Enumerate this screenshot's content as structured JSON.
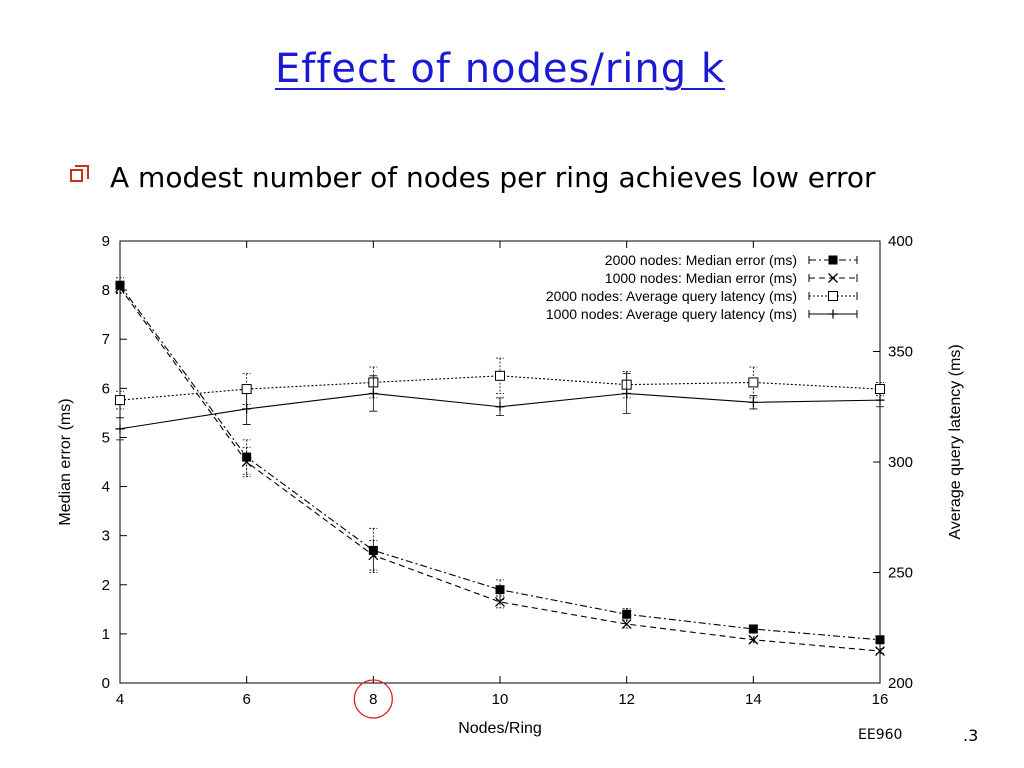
{
  "slide": {
    "title": "Effect of nodes/ring k",
    "bullet": "A modest number of nodes per ring achieves low error",
    "footer": "EE960",
    "page_number": ".3"
  },
  "chart_data": {
    "type": "line",
    "x": [
      4,
      6,
      8,
      10,
      12,
      14,
      16
    ],
    "xlabel": "Nodes/Ring",
    "ylabel": "Median error (ms)",
    "y2label": "Average query latency (ms)",
    "xlim": [
      4,
      16
    ],
    "ylim": [
      0,
      9
    ],
    "y2lim": [
      200,
      400
    ],
    "xticks": [
      4,
      6,
      8,
      10,
      12,
      14,
      16
    ],
    "yticks": [
      0,
      1,
      2,
      3,
      4,
      5,
      6,
      7,
      8,
      9
    ],
    "y2ticks": [
      200,
      250,
      300,
      350,
      400
    ],
    "legend_position": "top-right",
    "grid": false,
    "highlight_x": 8,
    "highlight_color": "#e02020",
    "series": [
      {
        "name": "2000 nodes: Median error (ms)",
        "axis": "left",
        "marker": "filled-square",
        "dash": "dash-dot",
        "values": [
          8.1,
          4.6,
          2.7,
          1.9,
          1.4,
          1.1,
          0.88
        ],
        "err": [
          0.15,
          0.35,
          0.45,
          0.2,
          0.12,
          0.08,
          0.05
        ]
      },
      {
        "name": "1000 nodes: Median error (ms)",
        "axis": "left",
        "marker": "cross",
        "dash": "dashed",
        "values": [
          8.05,
          4.5,
          2.6,
          1.65,
          1.2,
          0.88,
          0.65
        ],
        "err": [
          0.12,
          0.3,
          0.3,
          0.12,
          0.08,
          0.06,
          0.05
        ]
      },
      {
        "name": "2000 nodes: Average query latency (ms)",
        "axis": "right",
        "marker": "open-square",
        "dash": "dotted",
        "values": [
          328,
          333,
          336,
          339,
          335,
          336,
          333
        ],
        "err": [
          4,
          7,
          7,
          8,
          6,
          7,
          3
        ]
      },
      {
        "name": "1000 nodes: Average query latency (ms)",
        "axis": "right",
        "marker": "plus",
        "dash": "solid",
        "values": [
          315,
          324,
          331,
          325,
          331,
          327,
          328
        ],
        "err": [
          5,
          7,
          8,
          4,
          9,
          3,
          3
        ]
      }
    ]
  }
}
